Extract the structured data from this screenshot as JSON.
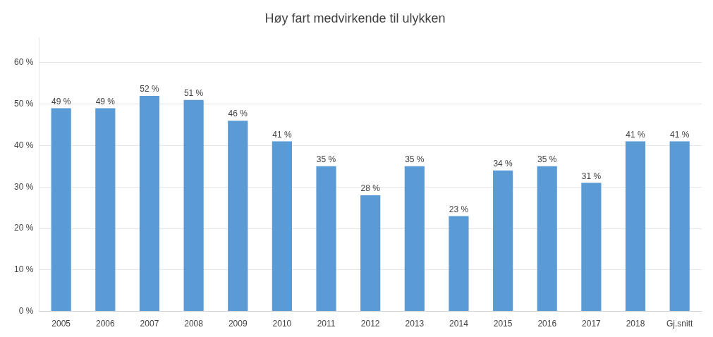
{
  "chart_data": {
    "type": "bar",
    "title": "Høy fart medvirkende til ulykken",
    "categories": [
      "2005",
      "2006",
      "2007",
      "2008",
      "2009",
      "2010",
      "2011",
      "2012",
      "2013",
      "2014",
      "2015",
      "2016",
      "2017",
      "2018",
      "Gj.snitt"
    ],
    "values": [
      0.49,
      0.49,
      0.52,
      0.51,
      0.46,
      0.41,
      0.35,
      0.28,
      0.35,
      0.23,
      0.34,
      0.35,
      0.31,
      0.41,
      0.41
    ],
    "value_labels": [
      "49 %",
      "49 %",
      "52 %",
      "51 %",
      "46 %",
      "41 %",
      "35 %",
      "28 %",
      "35 %",
      "23 %",
      "34 %",
      "35 %",
      "31 %",
      "41 %",
      "41 %"
    ],
    "data_labels": true,
    "color": "#5B9BD5",
    "ylim": [
      0.0,
      0.66
    ],
    "yticks": [
      {
        "value": 0.0,
        "label": "0 %"
      },
      {
        "value": 0.1,
        "label": "10 %"
      },
      {
        "value": 0.2,
        "label": "20 %"
      },
      {
        "value": 0.3,
        "label": "30 %"
      },
      {
        "value": 0.4,
        "label": "40 %"
      },
      {
        "value": 0.5,
        "label": "50 %"
      },
      {
        "value": 0.6,
        "label": "60 %"
      }
    ],
    "grid": true
  }
}
